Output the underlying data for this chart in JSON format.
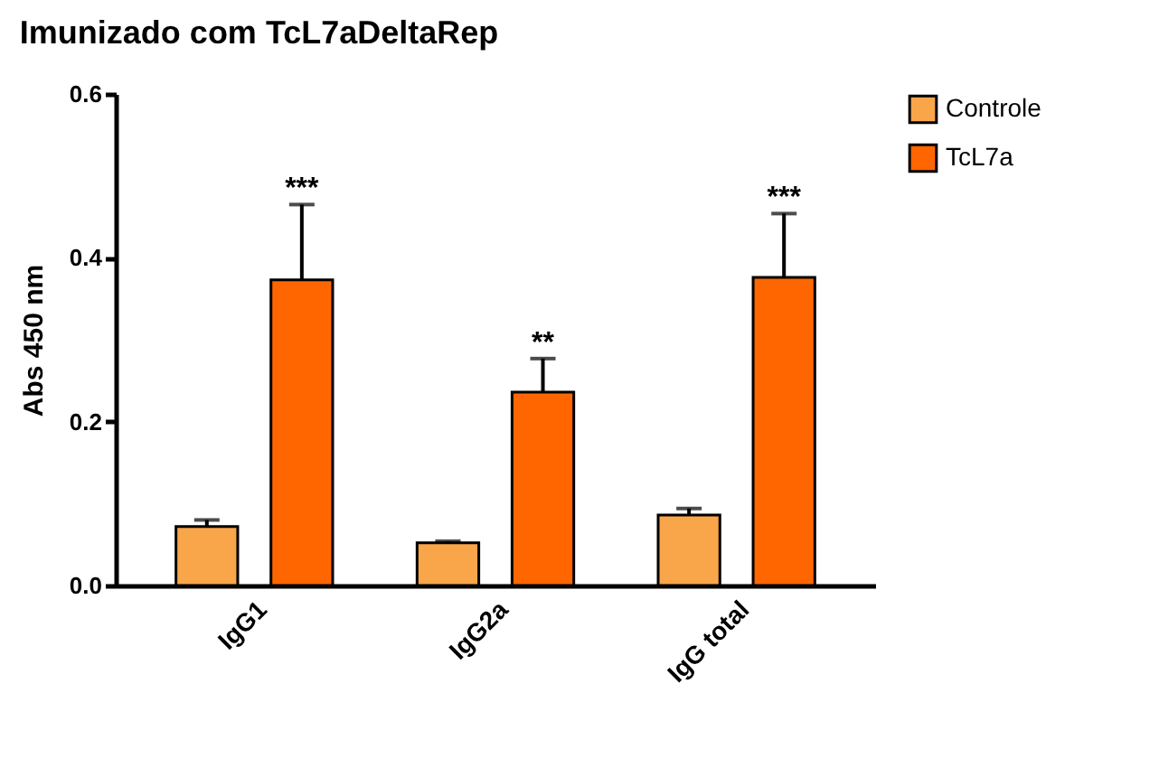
{
  "chart_data": {
    "type": "bar",
    "title": "Imunizado com TcL7aDeltaRep",
    "ylabel": "Abs 450 nm",
    "categories": [
      "IgG1",
      "IgG2a",
      "IgG total"
    ],
    "series": [
      {
        "name": "Controle",
        "color": "#f9a54a",
        "values": [
          0.072,
          0.052,
          0.086
        ],
        "errors": [
          [
            0.072,
            0.08
          ],
          [
            0.052,
            0.054
          ],
          [
            0.086,
            0.094
          ]
        ]
      },
      {
        "name": "TcL7a",
        "color": "#ff6600",
        "values": [
          0.373,
          0.236,
          0.376
        ],
        "errors": [
          [
            0.373,
            0.465
          ],
          [
            0.236,
            0.277
          ],
          [
            0.376,
            0.454
          ]
        ]
      }
    ],
    "ylim": [
      0,
      0.6
    ],
    "yticks": [
      {
        "value": 0,
        "label": "0.0"
      },
      {
        "value": 0.2,
        "label": "0.2"
      },
      {
        "value": 0.4,
        "label": "0.4"
      },
      {
        "value": 0.6,
        "label": "0.6"
      }
    ],
    "annotations": [
      "***",
      "**",
      "***"
    ],
    "legend": "top right",
    "grid": false
  }
}
